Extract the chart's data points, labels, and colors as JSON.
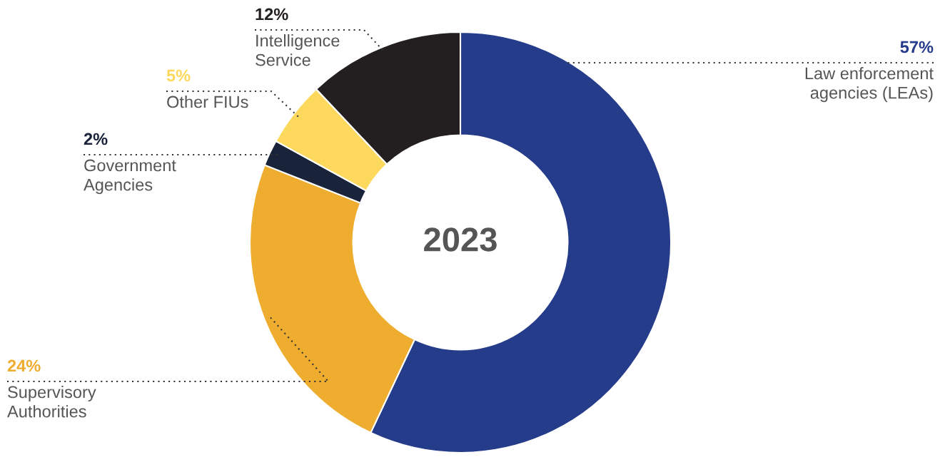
{
  "chart_data": {
    "type": "donut",
    "categories": [
      "Law enforcement\nagencies (LEAs)",
      "Supervisory\nAuthorities",
      "Government\nAgencies",
      "Other FIUs",
      "Intelligence\nService"
    ],
    "values": [
      57,
      24,
      2,
      5,
      12
    ],
    "colors": [
      "#253c8b",
      "#efad30",
      "#19233a",
      "#fcd95c",
      "#231f20"
    ],
    "value_labels": [
      "57%",
      "24%",
      "2%",
      "5%",
      "12%"
    ],
    "annotations": [
      "2023"
    ]
  }
}
